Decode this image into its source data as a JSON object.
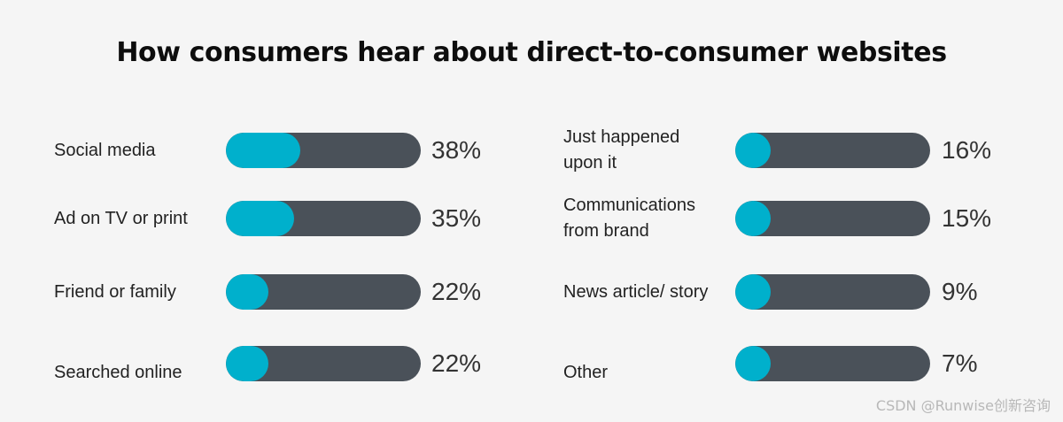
{
  "colors": {
    "background": "#f5f5f5",
    "track": "#4a5159",
    "fill": "#00b0cc"
  },
  "chart_data": {
    "type": "bar",
    "title": "How consumers hear about direct-to-consumer websites",
    "orientation": "horizontal",
    "value_unit": "%",
    "ylim": [
      0,
      100
    ],
    "grid": false,
    "legend": "none",
    "categories": [
      "Social media",
      "Ad on TV or print",
      "Friend or family",
      "Searched online",
      "Just happened upon it",
      "Communications from brand",
      "News article/ story",
      "Other"
    ],
    "values": [
      38,
      35,
      22,
      22,
      16,
      15,
      9,
      7
    ],
    "value_labels": [
      "38%",
      "35%",
      "22%",
      "22%",
      "16%",
      "15%",
      "9%",
      "7%"
    ]
  },
  "watermark": "CSDN @Runwise创新咨询"
}
